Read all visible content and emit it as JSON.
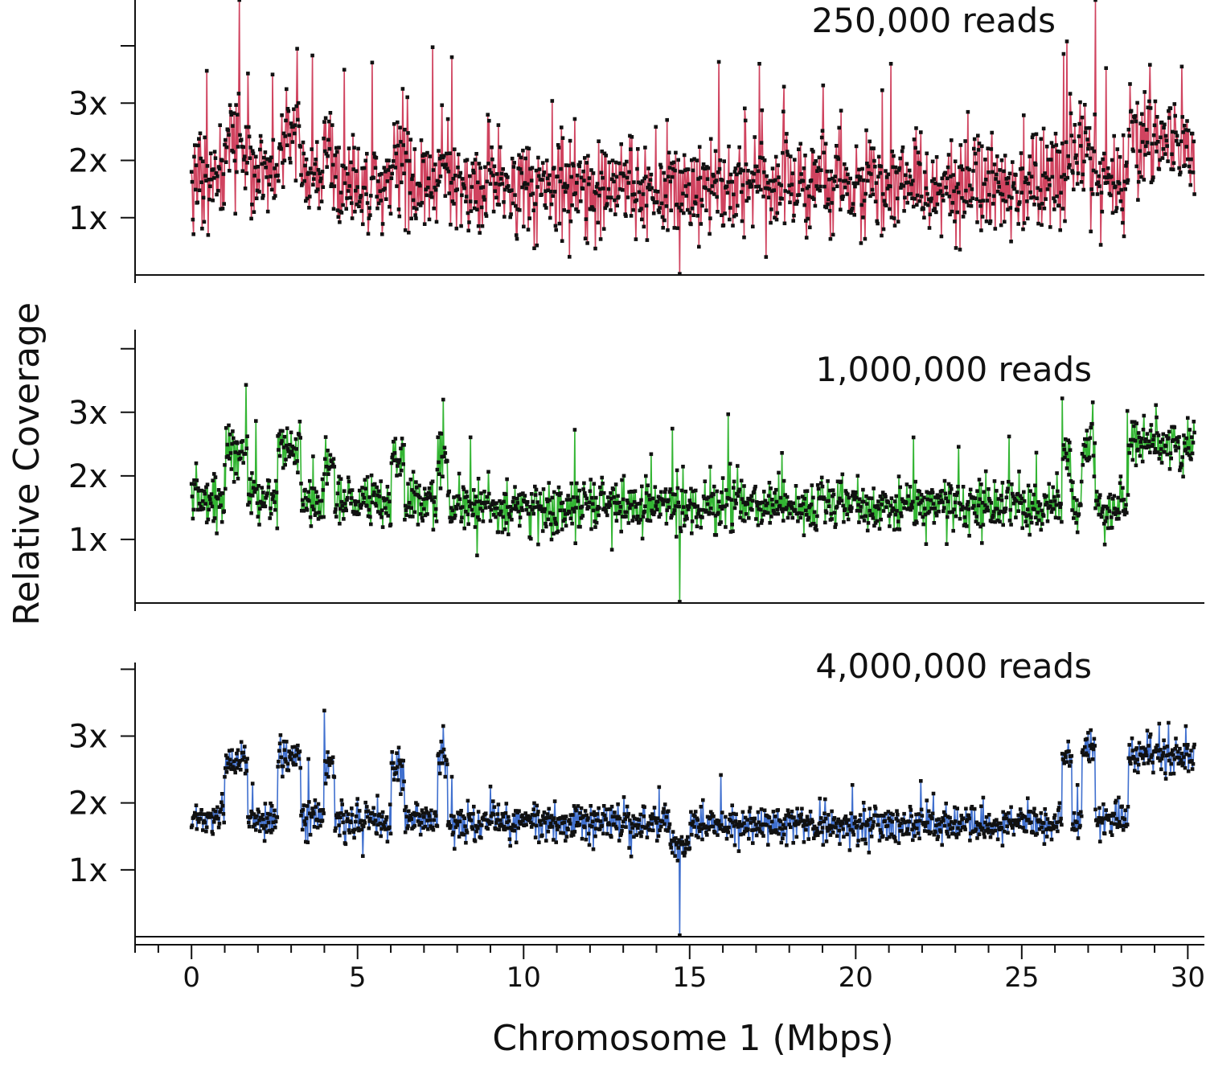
{
  "chart_data": {
    "type": "line",
    "ylabel": "Relative Coverage",
    "xlabel": "Chromosome 1 (Mbps)",
    "x_ticks": [
      0,
      5,
      10,
      15,
      20,
      25,
      30
    ],
    "xlim": [
      -1.7,
      30.5
    ],
    "panels": [
      {
        "title": "250,000 reads",
        "color": "#d0435f",
        "ylim": [
          0,
          4.8
        ],
        "y_ticks": [
          {
            "value": 1,
            "label": "1x"
          },
          {
            "value": 2,
            "label": "2x"
          },
          {
            "value": 3,
            "label": "3x"
          },
          {
            "value": 4,
            "label": ""
          }
        ],
        "noise": 0.5,
        "segments": [
          {
            "x0": 0,
            "x1": 1.0,
            "level": 1.7
          },
          {
            "x0": 1.0,
            "x1": 1.8,
            "level": 2.3
          },
          {
            "x0": 1.8,
            "x1": 2.7,
            "level": 1.8
          },
          {
            "x0": 2.7,
            "x1": 3.3,
            "level": 2.4
          },
          {
            "x0": 3.3,
            "x1": 4.0,
            "level": 1.6
          },
          {
            "x0": 4.0,
            "x1": 4.3,
            "level": 2.1
          },
          {
            "x0": 4.3,
            "x1": 6.0,
            "level": 1.5
          },
          {
            "x0": 6.0,
            "x1": 6.5,
            "level": 2.0
          },
          {
            "x0": 6.5,
            "x1": 7.5,
            "level": 1.6
          },
          {
            "x0": 7.5,
            "x1": 7.8,
            "level": 2.1
          },
          {
            "x0": 7.8,
            "x1": 26.2,
            "level": 1.55
          },
          {
            "x0": 26.2,
            "x1": 27.2,
            "level": 2.1
          },
          {
            "x0": 27.2,
            "x1": 28.2,
            "level": 1.6
          },
          {
            "x0": 28.2,
            "x1": 30.2,
            "level": 2.3
          }
        ]
      },
      {
        "title": "1,000,000 reads",
        "color": "#33b533",
        "ylim": [
          0,
          4.3
        ],
        "y_ticks": [
          {
            "value": 1,
            "label": "1x"
          },
          {
            "value": 2,
            "label": "2x"
          },
          {
            "value": 3,
            "label": "3x"
          },
          {
            "value": 4,
            "label": ""
          }
        ],
        "noise": 0.25,
        "segments": [
          {
            "x0": 0,
            "x1": 1.0,
            "level": 1.65
          },
          {
            "x0": 1.0,
            "x1": 1.7,
            "level": 2.35
          },
          {
            "x0": 1.7,
            "x1": 2.6,
            "level": 1.65
          },
          {
            "x0": 2.6,
            "x1": 3.3,
            "level": 2.4
          },
          {
            "x0": 3.3,
            "x1": 4.0,
            "level": 1.65
          },
          {
            "x0": 4.0,
            "x1": 4.3,
            "level": 2.2
          },
          {
            "x0": 4.3,
            "x1": 6.0,
            "level": 1.6
          },
          {
            "x0": 6.0,
            "x1": 6.4,
            "level": 2.3
          },
          {
            "x0": 6.4,
            "x1": 7.4,
            "level": 1.6
          },
          {
            "x0": 7.4,
            "x1": 7.7,
            "level": 2.4
          },
          {
            "x0": 7.7,
            "x1": 26.2,
            "level": 1.52
          },
          {
            "x0": 26.2,
            "x1": 26.5,
            "level": 2.3
          },
          {
            "x0": 26.5,
            "x1": 26.8,
            "level": 1.6
          },
          {
            "x0": 26.8,
            "x1": 27.2,
            "level": 2.5
          },
          {
            "x0": 27.2,
            "x1": 28.2,
            "level": 1.5
          },
          {
            "x0": 28.2,
            "x1": 30.2,
            "level": 2.5
          }
        ]
      },
      {
        "title": "4,000,000 reads",
        "color": "#4070cf",
        "ylim": [
          0,
          4.1
        ],
        "y_ticks": [
          {
            "value": 1,
            "label": "1x"
          },
          {
            "value": 2,
            "label": "2x"
          },
          {
            "value": 3,
            "label": "3x"
          },
          {
            "value": 4,
            "label": ""
          }
        ],
        "noise": 0.16,
        "segments": [
          {
            "x0": 0,
            "x1": 1.0,
            "level": 1.8
          },
          {
            "x0": 1.0,
            "x1": 1.7,
            "level": 2.6
          },
          {
            "x0": 1.7,
            "x1": 2.6,
            "level": 1.75
          },
          {
            "x0": 2.6,
            "x1": 3.3,
            "level": 2.7
          },
          {
            "x0": 3.3,
            "x1": 4.0,
            "level": 1.8
          },
          {
            "x0": 4.0,
            "x1": 4.3,
            "level": 2.6
          },
          {
            "x0": 4.3,
            "x1": 6.0,
            "level": 1.75
          },
          {
            "x0": 6.0,
            "x1": 6.4,
            "level": 2.5
          },
          {
            "x0": 6.4,
            "x1": 7.4,
            "level": 1.75
          },
          {
            "x0": 7.4,
            "x1": 7.7,
            "level": 2.7
          },
          {
            "x0": 7.7,
            "x1": 14.4,
            "level": 1.7
          },
          {
            "x0": 14.4,
            "x1": 15.0,
            "level": 1.35
          },
          {
            "x0": 15.0,
            "x1": 26.2,
            "level": 1.68
          },
          {
            "x0": 26.2,
            "x1": 26.5,
            "level": 2.7
          },
          {
            "x0": 26.5,
            "x1": 26.8,
            "level": 1.7
          },
          {
            "x0": 26.8,
            "x1": 27.2,
            "level": 2.8
          },
          {
            "x0": 27.2,
            "x1": 28.2,
            "level": 1.75
          },
          {
            "x0": 28.2,
            "x1": 30.2,
            "level": 2.7
          }
        ]
      }
    ]
  }
}
